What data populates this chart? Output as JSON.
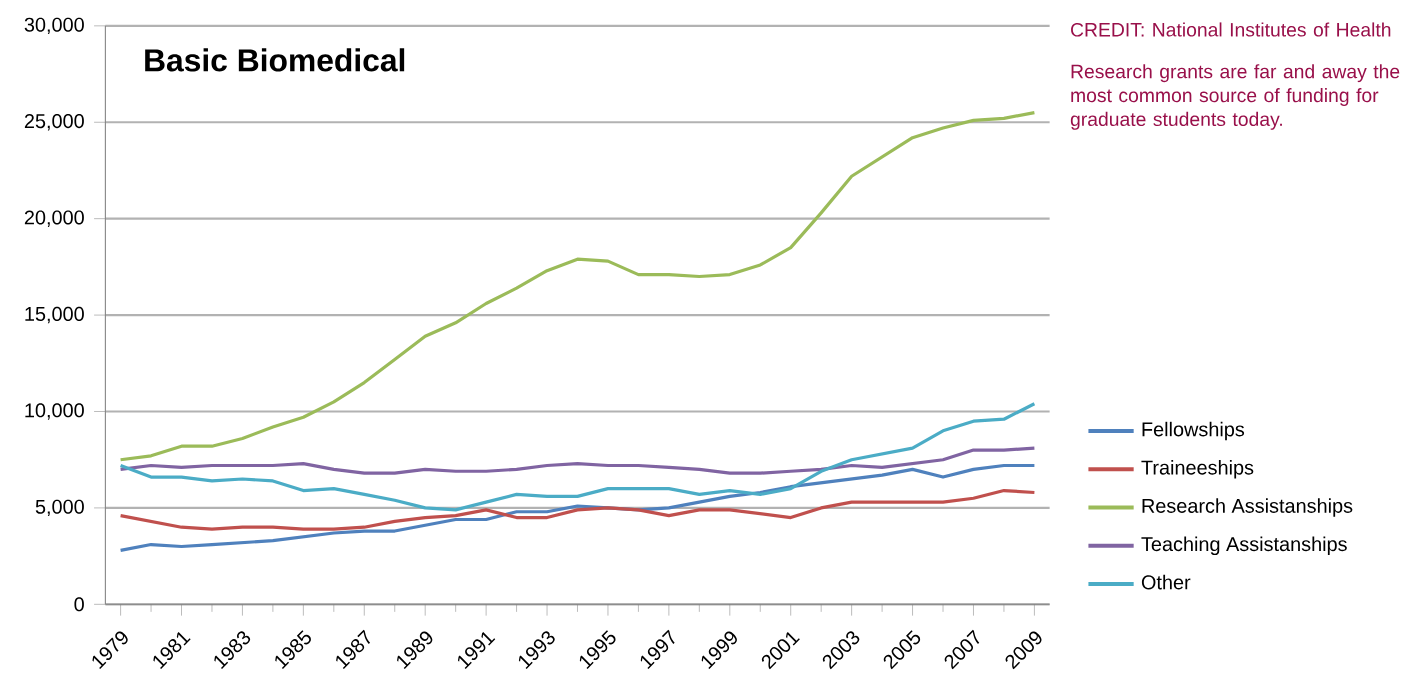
{
  "chart_data": {
    "type": "line",
    "title": "Basic Biomedical",
    "annotations": [
      "CREDIT: National Institutes of Health",
      "Research grants are far and away the most common source of funding for graduate students today."
    ],
    "x": [
      1979,
      1980,
      1981,
      1982,
      1983,
      1984,
      1985,
      1986,
      1987,
      1988,
      1989,
      1990,
      1991,
      1992,
      1993,
      1994,
      1995,
      1996,
      1997,
      1998,
      1999,
      2000,
      2001,
      2002,
      2003,
      2004,
      2005,
      2006,
      2007,
      2008,
      2009
    ],
    "series": [
      {
        "name": "Fellowships",
        "color": "#4f81bd",
        "values": [
          2800,
          3100,
          3000,
          3100,
          3200,
          3300,
          3500,
          3700,
          3800,
          3800,
          4100,
          4400,
          4400,
          4800,
          4800,
          5100,
          5000,
          4900,
          5000,
          5300,
          5600,
          5800,
          6100,
          6300,
          6500,
          6700,
          7000,
          6600,
          7000,
          7200,
          7200
        ]
      },
      {
        "name": "Traineeships",
        "color": "#c0504d",
        "values": [
          4600,
          4300,
          4000,
          3900,
          4000,
          4000,
          3900,
          3900,
          4000,
          4300,
          4500,
          4600,
          4900,
          4500,
          4500,
          4900,
          5000,
          4900,
          4600,
          4900,
          4900,
          4700,
          4500,
          5000,
          5300,
          5300,
          5300,
          5300,
          5500,
          5900,
          5800
        ]
      },
      {
        "name": "Research Assistanships",
        "color": "#9bbb59",
        "values": [
          7500,
          7700,
          8200,
          8200,
          8600,
          9200,
          9700,
          10500,
          11500,
          12700,
          13900,
          14600,
          15600,
          16400,
          17300,
          17900,
          17800,
          17100,
          17100,
          17000,
          17100,
          17600,
          18500,
          20300,
          22200,
          23200,
          24200,
          24700,
          25100,
          25200,
          25500
        ]
      },
      {
        "name": "Teaching Assistanships",
        "color": "#8064a2",
        "values": [
          7000,
          7200,
          7100,
          7200,
          7200,
          7200,
          7300,
          7000,
          6800,
          6800,
          7000,
          6900,
          6900,
          7000,
          7200,
          7300,
          7200,
          7200,
          7100,
          7000,
          6800,
          6800,
          6900,
          7000,
          7200,
          7100,
          7300,
          7500,
          8000,
          8000,
          8100
        ]
      },
      {
        "name": "Other",
        "color": "#4bacc6",
        "values": [
          7200,
          6600,
          6600,
          6400,
          6500,
          6400,
          5900,
          6000,
          5700,
          5400,
          5000,
          4900,
          5300,
          5700,
          5600,
          5600,
          6000,
          6000,
          6000,
          5700,
          5900,
          5700,
          6000,
          6900,
          7500,
          7800,
          8100,
          9000,
          9500,
          9600,
          10400
        ]
      }
    ],
    "xlim": [
      1978.5,
      2009.5
    ],
    "xticks": [
      1979,
      1981,
      1983,
      1985,
      1987,
      1989,
      1991,
      1993,
      1995,
      1997,
      1999,
      2001,
      2003,
      2005,
      2007,
      2009
    ],
    "ylim": [
      0,
      30000
    ],
    "yticks": [
      0,
      {
        "value": 5000,
        "label": "5,000"
      },
      {
        "value": 10000,
        "label": "10,000"
      },
      {
        "value": 15000,
        "label": "15,000"
      },
      {
        "value": 20000,
        "label": "20,000"
      },
      {
        "value": 25000,
        "label": "25,000"
      },
      {
        "value": 30000,
        "label": "30,000"
      }
    ],
    "grid": "y",
    "legend": "right"
  }
}
